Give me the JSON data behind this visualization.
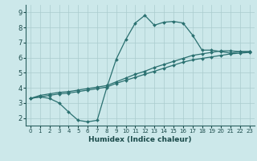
{
  "xlabel": "Humidex (Indice chaleur)",
  "ylabel": "",
  "xlim": [
    -0.5,
    23.5
  ],
  "ylim": [
    1.5,
    9.5
  ],
  "xticks": [
    0,
    1,
    2,
    3,
    4,
    5,
    6,
    7,
    8,
    9,
    10,
    11,
    12,
    13,
    14,
    15,
    16,
    17,
    18,
    19,
    20,
    21,
    22,
    23
  ],
  "yticks": [
    2,
    3,
    4,
    5,
    6,
    7,
    8,
    9
  ],
  "bg_color": "#cce8ea",
  "grid_color": "#aaccce",
  "line_color": "#2a7070",
  "line1_y": [
    3.3,
    3.4,
    3.3,
    3.0,
    2.4,
    1.85,
    1.75,
    1.85,
    4.0,
    5.9,
    7.2,
    8.3,
    8.8,
    8.15,
    8.35,
    8.4,
    8.3,
    7.5,
    6.5,
    6.5,
    6.4,
    6.3,
    6.4,
    6.4
  ],
  "line2_y": [
    3.3,
    3.5,
    3.6,
    3.7,
    3.75,
    3.85,
    3.95,
    4.05,
    4.15,
    4.4,
    4.65,
    4.9,
    5.1,
    5.35,
    5.55,
    5.75,
    5.95,
    6.15,
    6.25,
    6.35,
    6.45,
    6.45,
    6.4,
    6.4
  ],
  "line3_y": [
    3.3,
    3.4,
    3.5,
    3.6,
    3.65,
    3.75,
    3.85,
    3.95,
    4.05,
    4.3,
    4.5,
    4.7,
    4.9,
    5.1,
    5.3,
    5.5,
    5.7,
    5.85,
    5.95,
    6.05,
    6.15,
    6.25,
    6.3,
    6.35
  ]
}
